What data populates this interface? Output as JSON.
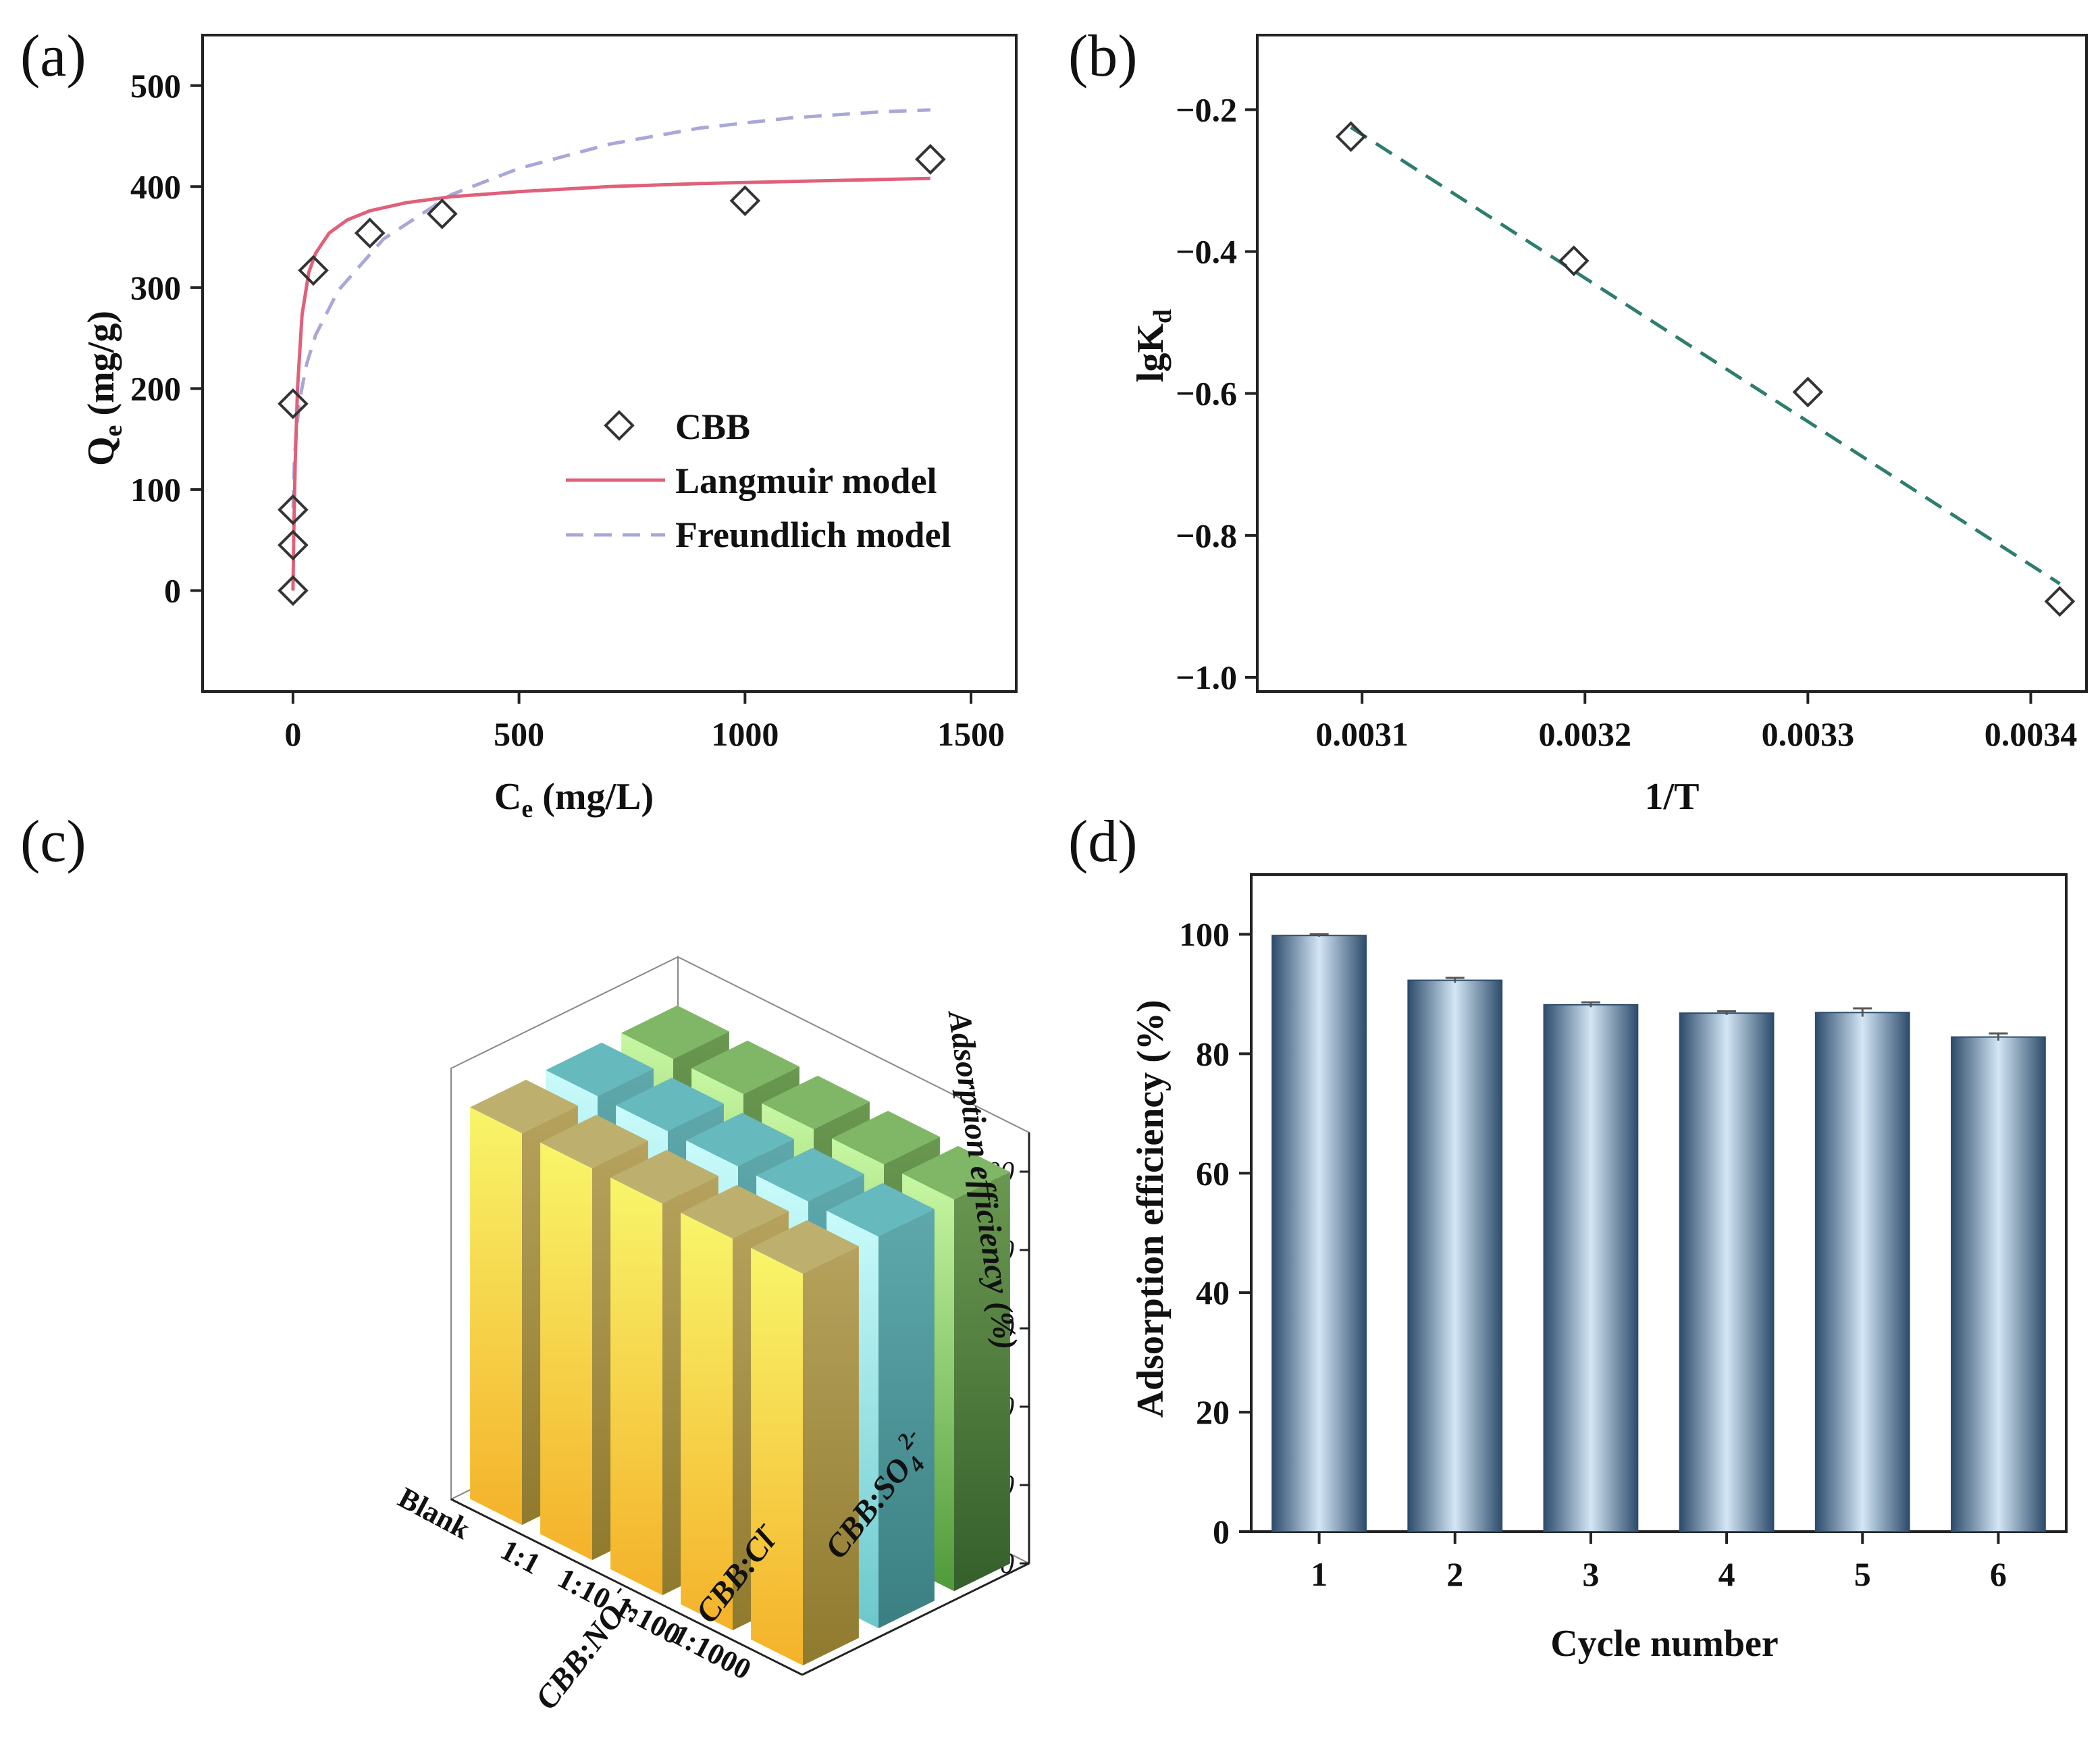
{
  "panels": {
    "a": {
      "label": "(a)"
    },
    "b": {
      "label": "(b)"
    },
    "c": {
      "label": "(c)"
    },
    "d": {
      "label": "(d)"
    }
  },
  "chart_data": [
    {
      "panel": "a",
      "type": "scatter",
      "xlabel": "C",
      "xlabel_sub": "e",
      "xlabel_unit": " (mg/L)",
      "ylabel": "Q",
      "ylabel_sub": "e",
      "ylabel_unit": " (mg/g)",
      "xlim": [
        -200,
        1600
      ],
      "ylim": [
        -100,
        550
      ],
      "xticks": [
        0,
        500,
        1000,
        1500
      ],
      "yticks": [
        0,
        100,
        200,
        300,
        400,
        500
      ],
      "legend_position": "center-right",
      "series": [
        {
          "name": "CBB",
          "style": "markers",
          "marker": "diamond",
          "color": "#333333",
          "x": [
            0,
            0,
            0,
            0,
            45,
            170,
            330,
            1000,
            1410
          ],
          "y": [
            0,
            45,
            80,
            185,
            317,
            354,
            373,
            386,
            427
          ]
        },
        {
          "name": "Langmuir model",
          "style": "solid",
          "color": "#e0607a",
          "x": [
            0,
            2,
            5,
            10,
            20,
            35,
            50,
            80,
            120,
            170,
            250,
            350,
            500,
            700,
            900,
            1100,
            1300,
            1410
          ],
          "y": [
            0,
            61,
            127,
            200,
            273,
            315,
            334,
            354,
            367,
            376,
            384,
            390,
            395,
            400,
            403,
            405,
            407,
            408
          ]
        },
        {
          "name": "Freundlich model",
          "style": "dashed",
          "color": "#a9a7d9",
          "x": [
            0.5,
            1,
            3,
            7,
            15,
            30,
            50,
            100,
            200,
            350,
            500,
            700,
            900,
            1100,
            1300,
            1410
          ],
          "y": [
            82,
            96,
            126,
            156,
            189,
            224,
            253,
            297,
            348,
            392,
            418,
            442,
            458,
            468,
            474,
            476
          ]
        }
      ]
    },
    {
      "panel": "b",
      "type": "scatter",
      "xlabel": "1/T",
      "ylabel": "lgK",
      "ylabel_sub": "d",
      "xlim": [
        0.003053,
        0.003425
      ],
      "ylim": [
        -1.02,
        -0.095
      ],
      "xticks": [
        "0.0031",
        "0.0032",
        "0.0033",
        "0.0034"
      ],
      "yticks": [
        "-0.2",
        "-0.4",
        "-0.6",
        "-0.8",
        "-1.0"
      ],
      "series": [
        {
          "name": "",
          "style": "markers",
          "marker": "diamond",
          "color": "#333333",
          "x": [
            0.003095,
            0.003195,
            0.0033,
            0.003413
          ],
          "y": [
            -0.238,
            -0.413,
            -0.598,
            -0.893
          ]
        },
        {
          "name": "",
          "style": "dashed",
          "color": "#2e7d6e",
          "x": [
            0.003095,
            0.003413
          ],
          "y": [
            -0.225,
            -0.868
          ]
        }
      ]
    },
    {
      "panel": "c",
      "type": "bar",
      "projection": "3d",
      "zlabel": "Adsorption efficiency (%)",
      "zlim": [
        0,
        100
      ],
      "zticks": [
        "0",
        "20",
        "40",
        "60",
        "80",
        "100"
      ],
      "categories": [
        "Blank",
        "1:1",
        "1:10",
        "1:100",
        "1:1000"
      ],
      "series_labels": [
        "CBB:NO",
        "3",
        "-",
        "CBB:Cl",
        "-",
        "CBB:SO",
        "4",
        "2-"
      ],
      "series": [
        {
          "id": "NO3",
          "color": "#f6cf3a",
          "values": [
            100,
            100,
            100,
            100,
            100
          ]
        },
        {
          "id": "Cl",
          "color": "#7bd6d9",
          "values": [
            100,
            100,
            100,
            100,
            100
          ]
        },
        {
          "id": "SO4",
          "color": "#8fcf6f",
          "values": [
            100,
            100,
            100,
            100,
            100
          ]
        }
      ]
    },
    {
      "panel": "d",
      "type": "bar",
      "xlabel": "Cycle number",
      "ylabel": "Adsorption efficiency (%)",
      "ylim": [
        0,
        110
      ],
      "yticks": [
        0,
        20,
        40,
        60,
        80,
        100
      ],
      "categories": [
        "1",
        "2",
        "3",
        "4",
        "5",
        "6"
      ],
      "values": [
        99.8,
        92.3,
        88.2,
        86.8,
        86.9,
        82.8
      ],
      "errors": [
        0.2,
        0.4,
        0.4,
        0.3,
        0.7,
        0.6
      ],
      "bar_color": "#3e6388"
    }
  ]
}
